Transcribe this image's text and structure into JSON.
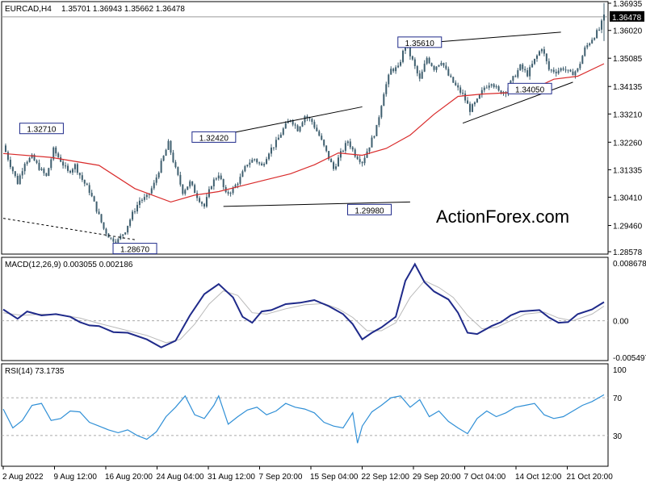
{
  "header": {
    "symbol": "EURCAD,H4",
    "ohlc": "1.35701 1.36943 1.35662 1.36478"
  },
  "watermark": "ActionForex.com",
  "colors": {
    "candle": "#3f5f6f",
    "ma": "#d92b2b",
    "macd": "#1f2a8a",
    "signal": "#b9b9b9",
    "rsi": "#2f8fd6",
    "price_line": "#9a9a9a",
    "trend_line": "#000000",
    "watermark": "#c8c8c8"
  },
  "chart_data": [
    {
      "type": "candlestick",
      "name": "price",
      "ylim": [
        1.28578,
        1.36935
      ],
      "last_price": 1.36478,
      "y_ticks": [
        1.36935,
        1.3602,
        1.35085,
        1.34135,
        1.3321,
        1.3226,
        1.31335,
        1.3041,
        1.2946,
        1.28578
      ],
      "y_tick_labels": [
        "1.36935",
        "1.36020",
        "1.35085",
        "1.34135",
        "1.33210",
        "1.32260",
        "1.31335",
        "1.30410",
        "1.29460",
        "1.28578"
      ],
      "close_path": [
        [
          0,
          1.3215
        ],
        [
          3,
          1.315
        ],
        [
          6,
          1.309
        ],
        [
          9,
          1.316
        ],
        [
          12,
          1.3175
        ],
        [
          15,
          1.314
        ],
        [
          18,
          1.311
        ],
        [
          21,
          1.32
        ],
        [
          24,
          1.3165
        ],
        [
          27,
          1.3125
        ],
        [
          30,
          1.3148
        ],
        [
          33,
          1.31
        ],
        [
          36,
          1.3062
        ],
        [
          39,
          1.3
        ],
        [
          42,
          1.2935
        ],
        [
          45,
          1.29
        ],
        [
          48,
          1.2896
        ],
        [
          51,
          1.293
        ],
        [
          54,
          1.2985
        ],
        [
          57,
          1.303
        ],
        [
          60,
          1.304
        ],
        [
          63,
          1.3085
        ],
        [
          66,
          1.3155
        ],
        [
          69,
          1.3222
        ],
        [
          72,
          1.3135
        ],
        [
          75,
          1.306
        ],
        [
          78,
          1.309
        ],
        [
          81,
          1.3045
        ],
        [
          84,
          1.301
        ],
        [
          87,
          1.3085
        ],
        [
          90,
          1.312
        ],
        [
          93,
          1.305
        ],
        [
          96,
          1.3068
        ],
        [
          99,
          1.3105
        ],
        [
          102,
          1.3155
        ],
        [
          105,
          1.317
        ],
        [
          108,
          1.3145
        ],
        [
          111,
          1.3195
        ],
        [
          114,
          1.3225
        ],
        [
          117,
          1.327
        ],
        [
          120,
          1.3305
        ],
        [
          123,
          1.327
        ],
        [
          126,
          1.3315
        ],
        [
          129,
          1.3295
        ],
        [
          132,
          1.3248
        ],
        [
          135,
          1.3192
        ],
        [
          138,
          1.3136
        ],
        [
          141,
          1.3188
        ],
        [
          144,
          1.323
        ],
        [
          147,
          1.3185
        ],
        [
          150,
          1.316
        ],
        [
          153,
          1.3215
        ],
        [
          156,
          1.3275
        ],
        [
          159,
          1.3395
        ],
        [
          162,
          1.347
        ],
        [
          165,
          1.3475
        ],
        [
          168,
          1.3555
        ],
        [
          171,
          1.35
        ],
        [
          174,
          1.3435
        ],
        [
          177,
          1.351
        ],
        [
          180,
          1.3475
        ],
        [
          183,
          1.35
        ],
        [
          186,
          1.345
        ],
        [
          189,
          1.3415
        ],
        [
          192,
          1.3385
        ],
        [
          195,
          1.3335
        ],
        [
          198,
          1.3365
        ],
        [
          201,
          1.341
        ],
        [
          204,
          1.343
        ],
        [
          207,
          1.3395
        ],
        [
          210,
          1.3398
        ],
        [
          213,
          1.344
        ],
        [
          216,
          1.348
        ],
        [
          219,
          1.3455
        ],
        [
          222,
          1.3502
        ],
        [
          225,
          1.3545
        ],
        [
          228,
          1.347
        ],
        [
          231,
          1.3465
        ],
        [
          234,
          1.3476
        ],
        [
          237,
          1.3455
        ],
        [
          240,
          1.347
        ],
        [
          243,
          1.354
        ],
        [
          246,
          1.3575
        ],
        [
          249,
          1.3605
        ],
        [
          251,
          1.3648
        ]
      ],
      "moving_average": [
        [
          0,
          1.3188
        ],
        [
          20,
          1.3175
        ],
        [
          40,
          1.3148
        ],
        [
          55,
          1.307
        ],
        [
          70,
          1.3025
        ],
        [
          80,
          1.3048
        ],
        [
          90,
          1.306
        ],
        [
          100,
          1.308
        ],
        [
          110,
          1.31
        ],
        [
          120,
          1.312
        ],
        [
          130,
          1.315
        ],
        [
          140,
          1.319
        ],
        [
          150,
          1.3182
        ],
        [
          160,
          1.3205
        ],
        [
          170,
          1.325
        ],
        [
          180,
          1.332
        ],
        [
          190,
          1.338
        ],
        [
          200,
          1.3388
        ],
        [
          210,
          1.3392
        ],
        [
          220,
          1.34
        ],
        [
          230,
          1.3438
        ],
        [
          240,
          1.3448
        ],
        [
          251,
          1.349
        ]
      ],
      "trend_lines": [
        [
          [
            0,
            1.297
          ],
          [
            55,
            1.2898
          ]
        ],
        [
          [
            88,
            1.3245
          ],
          [
            150,
            1.3345
          ]
        ],
        [
          [
            92,
            1.301
          ],
          [
            170,
            1.3025
          ]
        ],
        [
          [
            176,
            1.356
          ],
          [
            233,
            1.3596
          ]
        ],
        [
          [
            192,
            1.329
          ],
          [
            238,
            1.3428
          ]
        ]
      ],
      "annotations": [
        {
          "text": "1.32710",
          "x": 16,
          "y": 1.3271
        },
        {
          "text": "1.32420",
          "x": 88,
          "y": 1.3242
        },
        {
          "text": "1.28670",
          "x": 55,
          "y": 1.2867
        },
        {
          "text": "1.29980",
          "x": 153,
          "y": 1.2998
        },
        {
          "text": "1.35610",
          "x": 174,
          "y": 1.3561
        },
        {
          "text": "1.34050",
          "x": 220,
          "y": 1.3405
        }
      ]
    },
    {
      "type": "line",
      "name": "MACD",
      "title": "MACD(12,26,9) 0.003055 0.002186",
      "ylim": [
        -0.005497,
        0.008678
      ],
      "y_tick_labels": [
        "0.008678",
        "0.00",
        "-0.005497"
      ],
      "series": [
        {
          "values": [
            [
              0,
              0.0017
            ],
            [
              6,
              0.0003
            ],
            [
              10,
              0.0014
            ],
            [
              16,
              0.0008
            ],
            [
              22,
              0.001
            ],
            [
              28,
              0.0006
            ],
            [
              32,
              -0.0002
            ],
            [
              36,
              -0.0007
            ],
            [
              40,
              -0.0008
            ],
            [
              46,
              -0.0017
            ],
            [
              52,
              -0.0018
            ],
            [
              60,
              -0.0028
            ],
            [
              66,
              -0.004
            ],
            [
              72,
              -0.003
            ],
            [
              78,
              0.0008
            ],
            [
              84,
              0.004
            ],
            [
              90,
              0.0055
            ],
            [
              96,
              0.0035
            ],
            [
              100,
              0.0006
            ],
            [
              104,
              -0.0003
            ],
            [
              108,
              0.0014
            ],
            [
              112,
              0.0016
            ],
            [
              118,
              0.0025
            ],
            [
              124,
              0.0027
            ],
            [
              130,
              0.0031
            ],
            [
              136,
              0.0022
            ],
            [
              142,
              0.001
            ],
            [
              146,
              -0.0005
            ],
            [
              150,
              -0.0028
            ],
            [
              154,
              -0.0018
            ],
            [
              158,
              -0.001
            ],
            [
              164,
              0.0006
            ],
            [
              168,
              0.006
            ],
            [
              172,
              0.0085
            ],
            [
              176,
              0.0058
            ],
            [
              180,
              0.0044
            ],
            [
              186,
              0.0032
            ],
            [
              190,
              0.0012
            ],
            [
              194,
              -0.0018
            ],
            [
              198,
              -0.002
            ],
            [
              204,
              -0.0008
            ],
            [
              208,
              -0.0002
            ],
            [
              212,
              0.0008
            ],
            [
              216,
              0.0014
            ],
            [
              220,
              0.0015
            ],
            [
              224,
              0.0016
            ],
            [
              228,
              0.0005
            ],
            [
              232,
              -0.0003
            ],
            [
              236,
              -0.0002
            ],
            [
              240,
              0.001
            ],
            [
              246,
              0.0017
            ],
            [
              251,
              0.0028
            ]
          ]
        },
        {
          "values": [
            [
              0,
              0.0012
            ],
            [
              8,
              0.0008
            ],
            [
              16,
              0.001
            ],
            [
              24,
              0.0009
            ],
            [
              32,
              0.0004
            ],
            [
              40,
              -0.0004
            ],
            [
              50,
              -0.0013
            ],
            [
              60,
              -0.0022
            ],
            [
              68,
              -0.0033
            ],
            [
              74,
              -0.0028
            ],
            [
              80,
              -0.0005
            ],
            [
              86,
              0.0025
            ],
            [
              92,
              0.0045
            ],
            [
              98,
              0.0038
            ],
            [
              104,
              0.0012
            ],
            [
              110,
              0.001
            ],
            [
              118,
              0.0018
            ],
            [
              126,
              0.0024
            ],
            [
              134,
              0.0026
            ],
            [
              140,
              0.0018
            ],
            [
              146,
              0.0005
            ],
            [
              152,
              -0.0015
            ],
            [
              158,
              -0.0015
            ],
            [
              164,
              -0.0003
            ],
            [
              170,
              0.0035
            ],
            [
              176,
              0.006
            ],
            [
              182,
              0.005
            ],
            [
              188,
              0.0035
            ],
            [
              194,
              0.0008
            ],
            [
              200,
              -0.0012
            ],
            [
              206,
              -0.001
            ],
            [
              212,
              0.0
            ],
            [
              218,
              0.001
            ],
            [
              226,
              0.0013
            ],
            [
              232,
              0.0004
            ],
            [
              238,
              0.0
            ],
            [
              246,
              0.001
            ],
            [
              251,
              0.0022
            ]
          ]
        }
      ]
    },
    {
      "type": "line",
      "name": "RSI",
      "title": "RSI(14) 73.1735",
      "ylim": [
        0,
        100
      ],
      "y_tick_labels": [
        "100",
        "70",
        "30"
      ],
      "levels": [
        70,
        30
      ],
      "values": [
        [
          0,
          58
        ],
        [
          4,
          38
        ],
        [
          8,
          46
        ],
        [
          12,
          62
        ],
        [
          16,
          64
        ],
        [
          20,
          46
        ],
        [
          24,
          48
        ],
        [
          28,
          56
        ],
        [
          32,
          55
        ],
        [
          36,
          44
        ],
        [
          40,
          40
        ],
        [
          44,
          36
        ],
        [
          48,
          33
        ],
        [
          52,
          36
        ],
        [
          56,
          30
        ],
        [
          60,
          26
        ],
        [
          64,
          34
        ],
        [
          68,
          50
        ],
        [
          72,
          60
        ],
        [
          76,
          72
        ],
        [
          80,
          52
        ],
        [
          84,
          48
        ],
        [
          88,
          62
        ],
        [
          90,
          72
        ],
        [
          94,
          42
        ],
        [
          98,
          50
        ],
        [
          102,
          57
        ],
        [
          106,
          60
        ],
        [
          110,
          52
        ],
        [
          114,
          56
        ],
        [
          118,
          64
        ],
        [
          122,
          60
        ],
        [
          126,
          58
        ],
        [
          130,
          54
        ],
        [
          134,
          44
        ],
        [
          138,
          40
        ],
        [
          142,
          38
        ],
        [
          146,
          54
        ],
        [
          148,
          22
        ],
        [
          150,
          40
        ],
        [
          154,
          55
        ],
        [
          158,
          62
        ],
        [
          162,
          70
        ],
        [
          166,
          72
        ],
        [
          170,
          60
        ],
        [
          174,
          68
        ],
        [
          178,
          50
        ],
        [
          182,
          56
        ],
        [
          186,
          45
        ],
        [
          190,
          38
        ],
        [
          194,
          32
        ],
        [
          198,
          48
        ],
        [
          202,
          56
        ],
        [
          206,
          50
        ],
        [
          210,
          54
        ],
        [
          214,
          60
        ],
        [
          218,
          62
        ],
        [
          222,
          64
        ],
        [
          226,
          52
        ],
        [
          230,
          48
        ],
        [
          234,
          50
        ],
        [
          238,
          56
        ],
        [
          242,
          62
        ],
        [
          246,
          66
        ],
        [
          251,
          73.17
        ]
      ]
    }
  ],
  "x_axis": {
    "labels": [
      "2 Aug 2022",
      "9 Aug 12:00",
      "16 Aug 20:00",
      "24 Aug 04:00",
      "31 Aug 12:00",
      "7 Sep 20:00",
      "15 Sep 04:00",
      "22 Sep 12:00",
      "29 Sep 20:00",
      "7 Oct 04:00",
      "14 Oct 12:00",
      "21 Oct 20:00"
    ]
  }
}
